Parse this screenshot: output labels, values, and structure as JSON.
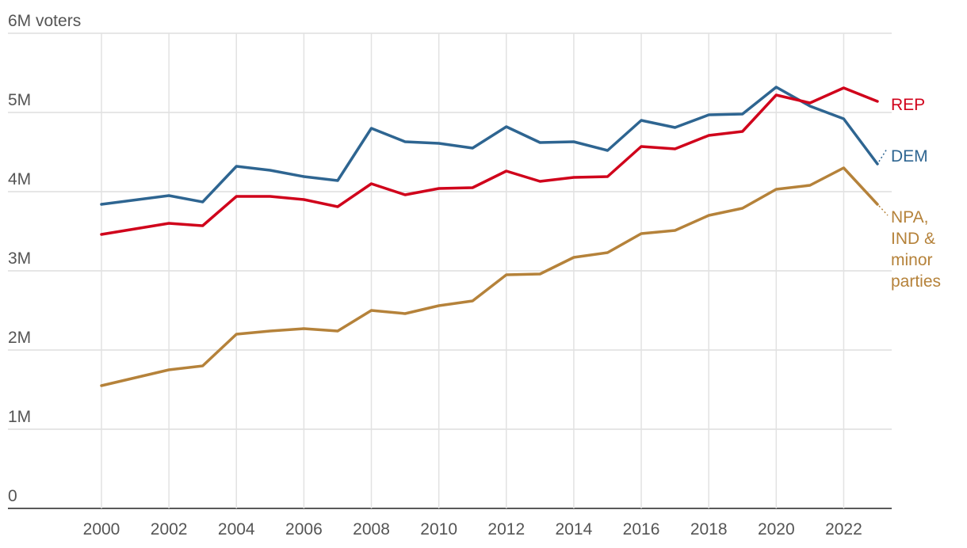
{
  "chart_data": {
    "type": "line",
    "x": [
      2000,
      2002,
      2003,
      2004,
      2005,
      2006,
      2007,
      2008,
      2009,
      2010,
      2011,
      2012,
      2013,
      2014,
      2015,
      2016,
      2017,
      2018,
      2019,
      2020,
      2021,
      2022,
      2023
    ],
    "series": [
      {
        "name": "REP",
        "color": "#d0021b",
        "values": [
          3.46,
          3.6,
          3.57,
          3.94,
          3.94,
          3.9,
          3.81,
          4.1,
          3.96,
          4.04,
          4.05,
          4.26,
          4.13,
          4.18,
          4.19,
          4.57,
          4.54,
          4.71,
          4.76,
          5.22,
          5.12,
          5.31,
          5.14
        ]
      },
      {
        "name": "DEM",
        "color": "#2e6591",
        "values": [
          3.84,
          3.95,
          3.87,
          4.32,
          4.27,
          4.19,
          4.14,
          4.8,
          4.63,
          4.61,
          4.55,
          4.82,
          4.62,
          4.63,
          4.52,
          4.9,
          4.81,
          4.97,
          4.98,
          5.32,
          5.08,
          4.92,
          4.35
        ]
      },
      {
        "name": "NPA, IND & minor parties",
        "label_lines": [
          "NPA,",
          "IND &",
          "minor",
          "parties"
        ],
        "color": "#b5823a",
        "values": [
          1.55,
          1.75,
          1.8,
          2.2,
          2.24,
          2.27,
          2.24,
          2.5,
          2.46,
          2.56,
          2.62,
          2.95,
          2.96,
          3.17,
          3.23,
          3.47,
          3.51,
          3.7,
          3.79,
          4.03,
          4.08,
          4.3,
          3.84
        ]
      }
    ],
    "y_ticks": [
      {
        "value": 0,
        "label": "0"
      },
      {
        "value": 1,
        "label": "1M"
      },
      {
        "value": 2,
        "label": "2M"
      },
      {
        "value": 3,
        "label": "3M"
      },
      {
        "value": 4,
        "label": "4M"
      },
      {
        "value": 5,
        "label": "5M"
      },
      {
        "value": 6,
        "label": "6M voters"
      }
    ],
    "x_ticks": [
      2000,
      2002,
      2004,
      2006,
      2008,
      2010,
      2012,
      2014,
      2016,
      2018,
      2020,
      2022
    ],
    "ylim": [
      0,
      6
    ],
    "xlim": [
      1998.5,
      2023.5
    ],
    "grid": true,
    "title": "",
    "xlabel": "",
    "ylabel": ""
  }
}
